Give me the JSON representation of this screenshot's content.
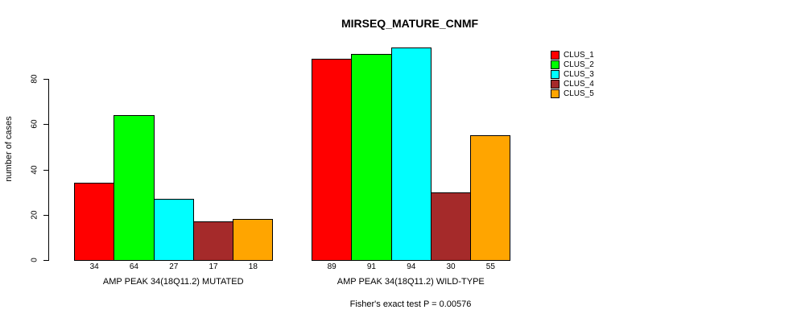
{
  "page": {
    "title": "MIRSEQ_MATURE_CNMF",
    "ylabel": "number of cases",
    "footer": "Fisher's exact test P = 0.00576"
  },
  "legend": {
    "position": "right",
    "items": [
      {
        "label": "CLUS_1",
        "color": "#FF0000"
      },
      {
        "label": "CLUS_2",
        "color": "#00FF00"
      },
      {
        "label": "CLUS_3",
        "color": "#00FFFF"
      },
      {
        "label": "CLUS_4",
        "color": "#A52A2A"
      },
      {
        "label": "CLUS_5",
        "color": "#FFA500"
      }
    ]
  },
  "chart_data": {
    "type": "bar",
    "title": "MIRSEQ_MATURE_CNMF",
    "xlabel": "",
    "ylabel": "number of cases",
    "yticks": [
      0,
      20,
      40,
      60,
      80
    ],
    "ylim": [
      0,
      96
    ],
    "grid": false,
    "legend_position": "right",
    "bar_border_color": "#000000",
    "categories": [
      "AMP PEAK 34(18Q11.2) MUTATED",
      "AMP PEAK 34(18Q11.2) WILD-TYPE"
    ],
    "series": [
      {
        "name": "CLUS_1",
        "color": "#FF0000",
        "values": [
          34,
          89
        ]
      },
      {
        "name": "CLUS_2",
        "color": "#00FF00",
        "values": [
          64,
          91
        ]
      },
      {
        "name": "CLUS_3",
        "color": "#00FFFF",
        "values": [
          27,
          94
        ]
      },
      {
        "name": "CLUS_4",
        "color": "#A52A2A",
        "values": [
          17,
          30
        ]
      },
      {
        "name": "CLUS_5",
        "color": "#FFA500",
        "values": [
          18,
          55
        ]
      }
    ],
    "groups": [
      {
        "label": "AMP PEAK 34(18Q11.2) MUTATED",
        "values": [
          34,
          64,
          27,
          17,
          18
        ]
      },
      {
        "label": "AMP PEAK 34(18Q11.2) WILD-TYPE",
        "values": [
          89,
          91,
          94,
          30,
          55
        ]
      }
    ],
    "bar_value_labels": [
      [
        34,
        64,
        27,
        17,
        18
      ],
      [
        89,
        91,
        94,
        30,
        55
      ]
    ],
    "annotation": "Fisher's exact test P = 0.00576"
  }
}
